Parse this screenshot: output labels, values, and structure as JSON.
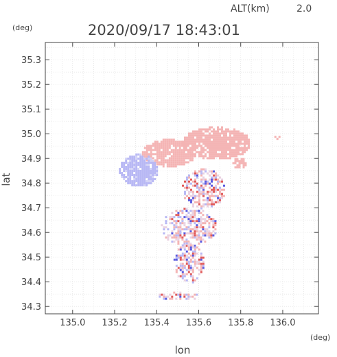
{
  "header": {
    "altitude_label": "ALT(km)",
    "altitude_value": "2.0",
    "timestamp": "2020/09/17 18:43:01"
  },
  "axes": {
    "x_label": "lon",
    "y_label": "lat",
    "x_unit": "(deg)",
    "y_unit": "(deg)"
  },
  "chart_data": {
    "type": "heatmap",
    "xlabel": "lon",
    "ylabel": "lat",
    "xlim": [
      134.87,
      136.17
    ],
    "ylim": [
      34.27,
      35.37
    ],
    "x_ticks": [
      "135.0",
      "135.2",
      "135.4",
      "135.6",
      "135.8",
      "136.0"
    ],
    "y_ticks": [
      "34.3",
      "34.4",
      "34.5",
      "34.6",
      "34.7",
      "34.8",
      "34.9",
      "35.0",
      "35.1",
      "35.2",
      "35.3"
    ],
    "grid": true,
    "colors": {
      "positive": "#f4b4b4",
      "negative": "#b8b8f4",
      "strong_positive": "#e05a5a",
      "strong_negative": "#5a5ae0"
    },
    "regions": [
      {
        "kind": "positive",
        "lon": [
          135.52,
          135.84
        ],
        "lat": [
          34.9,
          35.03
        ]
      },
      {
        "kind": "positive",
        "lon": [
          135.33,
          135.58
        ],
        "lat": [
          34.87,
          34.98
        ]
      },
      {
        "kind": "negative",
        "lon": [
          135.22,
          135.4
        ],
        "lat": [
          34.79,
          34.92
        ]
      },
      {
        "kind": "mixed",
        "lon": [
          135.52,
          135.72
        ],
        "lat": [
          34.7,
          34.86
        ]
      },
      {
        "kind": "positive",
        "lon": [
          135.76,
          135.82
        ],
        "lat": [
          34.86,
          34.91
        ]
      },
      {
        "kind": "mixed",
        "lon": [
          135.42,
          135.68
        ],
        "lat": [
          34.55,
          34.7
        ]
      },
      {
        "kind": "mixed",
        "lon": [
          135.48,
          135.62
        ],
        "lat": [
          34.4,
          34.56
        ]
      },
      {
        "kind": "mixed",
        "lon": [
          135.4,
          135.6
        ],
        "lat": [
          34.33,
          34.36
        ]
      },
      {
        "kind": "positive",
        "lon": [
          135.96,
          135.98
        ],
        "lat": [
          34.98,
          35.0
        ]
      }
    ]
  }
}
